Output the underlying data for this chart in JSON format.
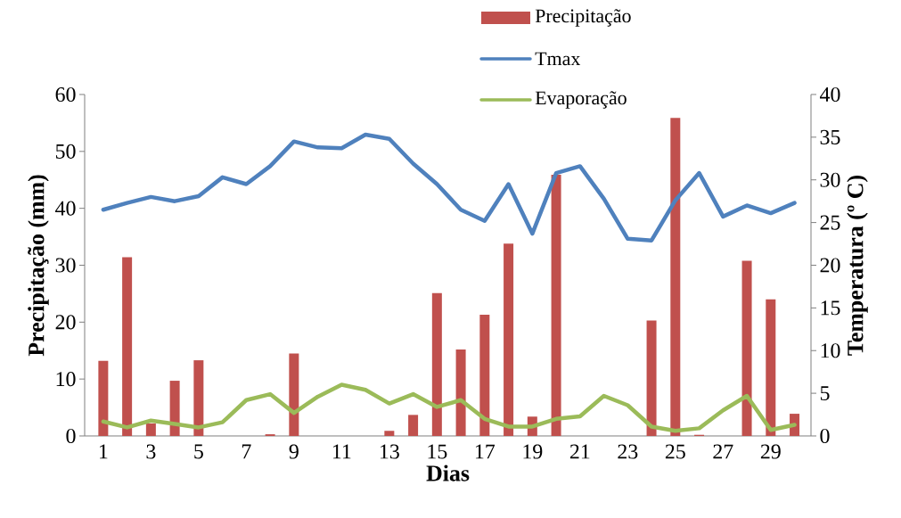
{
  "chart_data": {
    "type": "bar",
    "xlabel": "Dias",
    "ylabel": "Precipitação (mm)",
    "y2label": "Temperatura (º C)",
    "categories": [
      "1",
      null,
      "3",
      null,
      "5",
      null,
      "7",
      null,
      "9",
      null,
      "11",
      null,
      "13",
      null,
      "15",
      null,
      "17",
      null,
      "19",
      null,
      "21",
      null,
      "23",
      null,
      "25",
      null,
      "27",
      null,
      "29",
      null
    ],
    "series": [
      {
        "name": "Precipitação",
        "color": "#c0504d",
        "values": [
          13.2,
          31.4,
          2.2,
          9.7,
          13.3,
          0,
          0,
          0.3,
          14.5,
          0,
          0,
          0,
          0.9,
          3.7,
          25.1,
          15.2,
          21.3,
          33.8,
          3.4,
          45.9,
          0,
          0,
          0,
          20.3,
          55.9,
          0.2,
          0,
          30.8,
          24.0,
          3.9
        ]
      },
      {
        "name": "Tmax",
        "type": "line",
        "axis": "y2",
        "color": "#4f81bd",
        "values": [
          26.5,
          27.3,
          28.0,
          27.5,
          28.1,
          30.3,
          29.5,
          31.6,
          34.5,
          33.8,
          33.7,
          35.3,
          34.8,
          31.9,
          29.5,
          26.5,
          25.2,
          29.5,
          23.7,
          30.8,
          31.6,
          27.8,
          23.1,
          22.9,
          27.6,
          30.8,
          25.7,
          27.0,
          26.1,
          27.3
        ]
      },
      {
        "name": "Evaporação",
        "type": "line",
        "axis": "y2",
        "color": "#9bbb59",
        "values": [
          1.7,
          1.0,
          1.8,
          1.4,
          1.0,
          1.6,
          4.2,
          4.9,
          2.7,
          4.6,
          6.0,
          5.4,
          3.8,
          4.9,
          3.4,
          4.2,
          2.0,
          1.1,
          1.1,
          2.0,
          2.3,
          4.7,
          3.6,
          1.1,
          0.6,
          0.9,
          3.0,
          4.7,
          0.7,
          1.3
        ]
      }
    ],
    "ylim": [
      0,
      60
    ],
    "yticks": [
      0,
      10,
      20,
      30,
      40,
      50,
      60
    ],
    "y2lim": [
      0,
      40
    ],
    "y2ticks": [
      0,
      5,
      10,
      15,
      20,
      25,
      30,
      35,
      40
    ],
    "legend": "top"
  }
}
